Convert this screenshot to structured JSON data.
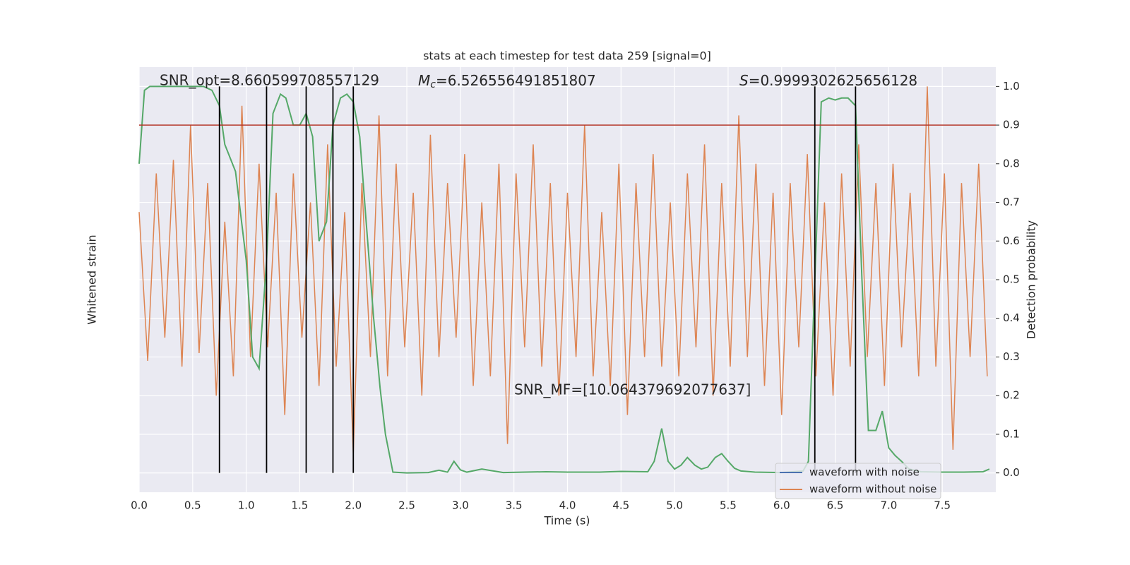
{
  "chart_data": {
    "type": "line",
    "title": "stats at each timestep for test data 259 [signal=0]",
    "x_label": "Time (s)",
    "y_label": "Whitened strain",
    "y2_label": "Detection probability",
    "xlim": [
      0,
      8
    ],
    "xticks": [
      {
        "value": 0,
        "label": "0.0"
      },
      0.5,
      {
        "value": 1,
        "label": "1.0"
      },
      1.5,
      {
        "value": 2,
        "label": "2.0"
      },
      2.5,
      {
        "value": 3,
        "label": "3.0"
      },
      3.5,
      {
        "value": 4,
        "label": "4.0"
      },
      4.5,
      {
        "value": 5,
        "label": "5.0"
      },
      5.5,
      {
        "value": 6,
        "label": "6.0"
      },
      6.5,
      {
        "value": 7,
        "label": "7.0"
      },
      7.5
    ],
    "ylim": [
      -1.1,
      1.1
    ],
    "y2lim": [
      -0.05,
      1.05
    ],
    "y2ticks": [
      {
        "value": 0,
        "label": "0.0"
      },
      0.1,
      0.2,
      0.3,
      0.4,
      0.5,
      0.6,
      0.7,
      0.8,
      0.9,
      {
        "value": 1,
        "label": "1.0"
      }
    ],
    "grid": true,
    "legend": "lower right",
    "series": [
      {
        "name": "waveform with noise",
        "color": "#4c72b0"
      },
      {
        "name": "waveform without noise",
        "color": "#dd8452",
        "x": [
          0,
          0.08,
          0.16,
          0.24,
          0.32,
          0.4,
          0.48,
          0.56,
          0.64,
          0.72,
          0.8,
          0.88,
          0.96,
          1.04,
          1.12,
          1.2,
          1.28,
          1.36,
          1.44,
          1.52,
          1.6,
          1.68,
          1.76,
          1.84,
          1.92,
          2,
          2.08,
          2.16,
          2.24,
          2.32,
          2.4,
          2.48,
          2.56,
          2.64,
          2.72,
          2.8,
          2.88,
          2.96,
          3.04,
          3.12,
          3.2,
          3.28,
          3.36,
          3.44,
          3.52,
          3.6,
          3.68,
          3.76,
          3.84,
          3.92,
          4,
          4.08,
          4.16,
          4.24,
          4.32,
          4.4,
          4.48,
          4.56,
          4.64,
          4.72,
          4.8,
          4.88,
          4.96,
          5.04,
          5.12,
          5.2,
          5.28,
          5.36,
          5.44,
          5.52,
          5.6,
          5.68,
          5.76,
          5.84,
          5.92,
          6,
          6.08,
          6.16,
          6.24,
          6.32,
          6.4,
          6.48,
          6.56,
          6.64,
          6.72,
          6.8,
          6.88,
          6.96,
          7.04,
          7.12,
          7.2,
          7.28,
          7.36,
          7.44,
          7.52,
          7.6,
          7.68,
          7.76,
          7.84,
          7.92
        ],
        "values": [
          0.35,
          -0.42,
          0.55,
          -0.3,
          0.62,
          -0.45,
          0.8,
          -0.38,
          0.5,
          -0.6,
          0.3,
          -0.5,
          0.9,
          -0.4,
          0.6,
          -0.35,
          0.45,
          -0.7,
          0.55,
          -0.3,
          0.4,
          -0.55,
          0.7,
          -0.45,
          0.35,
          -0.9,
          0.5,
          -0.4,
          0.85,
          -0.5,
          0.6,
          -0.35,
          0.45,
          -0.6,
          0.75,
          -0.4,
          0.5,
          -0.3,
          0.65,
          -0.55,
          0.4,
          -0.5,
          0.6,
          -0.85,
          0.55,
          -0.35,
          0.7,
          -0.45,
          0.5,
          -0.6,
          0.45,
          -0.4,
          0.8,
          -0.5,
          0.35,
          -0.55,
          0.6,
          -0.7,
          0.5,
          -0.4,
          0.65,
          -0.45,
          0.4,
          -0.5,
          0.55,
          -0.35,
          0.7,
          -0.6,
          0.5,
          -0.45,
          0.85,
          -0.4,
          0.6,
          -0.55,
          0.45,
          -0.7,
          0.5,
          -0.35,
          0.65,
          -0.5,
          0.4,
          -0.6,
          0.55,
          -0.45,
          0.7,
          -0.4,
          0.5,
          -0.55,
          0.6,
          -0.35,
          0.45,
          -0.5,
          1.0,
          -0.45,
          0.55,
          -0.88,
          0.5,
          -0.4,
          0.6,
          -0.5
        ]
      },
      {
        "color": "#55a868",
        "axis": "y2",
        "x": [
          0,
          0.05,
          0.1,
          0.2,
          0.4,
          0.6,
          0.68,
          0.75,
          0.8,
          0.9,
          1.0,
          1.06,
          1.12,
          1.19,
          1.25,
          1.32,
          1.37,
          1.44,
          1.5,
          1.56,
          1.62,
          1.68,
          1.75,
          1.81,
          1.88,
          1.94,
          2.0,
          2.06,
          2.12,
          2.19,
          2.25,
          2.3,
          2.37,
          2.5,
          2.7,
          2.8,
          2.88,
          2.94,
          3.0,
          3.06,
          3.2,
          3.4,
          3.6,
          3.8,
          4.0,
          4.3,
          4.5,
          4.75,
          4.81,
          4.88,
          4.94,
          5.0,
          5.06,
          5.12,
          5.19,
          5.25,
          5.31,
          5.38,
          5.44,
          5.5,
          5.56,
          5.62,
          5.75,
          6.0,
          6.2,
          6.25,
          6.31,
          6.37,
          6.44,
          6.5,
          6.56,
          6.62,
          6.69,
          6.75,
          6.81,
          6.88,
          6.94,
          7.0,
          7.06,
          7.12,
          7.19,
          7.3,
          7.5,
          7.7,
          7.88,
          7.94
        ],
        "values": [
          0.8,
          0.99,
          1.0,
          1.0,
          1.0,
          1.0,
          0.99,
          0.95,
          0.85,
          0.78,
          0.55,
          0.3,
          0.27,
          0.55,
          0.93,
          0.98,
          0.97,
          0.9,
          0.9,
          0.93,
          0.87,
          0.6,
          0.65,
          0.9,
          0.97,
          0.98,
          0.96,
          0.87,
          0.65,
          0.4,
          0.22,
          0.1,
          0.002,
          0,
          0.001,
          0.007,
          0.002,
          0.03,
          0.008,
          0.002,
          0.01,
          0.001,
          0.002,
          0.003,
          0.002,
          0.002,
          0.004,
          0.003,
          0.03,
          0.115,
          0.03,
          0.01,
          0.02,
          0.04,
          0.02,
          0.01,
          0.015,
          0.04,
          0.05,
          0.03,
          0.012,
          0.005,
          0.002,
          0.001,
          0.005,
          0.03,
          0.5,
          0.96,
          0.97,
          0.965,
          0.97,
          0.97,
          0.95,
          0.5,
          0.11,
          0.11,
          0.16,
          0.065,
          0.045,
          0.03,
          0.01,
          0.003,
          0.002,
          0.002,
          0.003,
          0.01
        ]
      }
    ],
    "hlines": [
      {
        "y": 0.9,
        "axis": "y2",
        "color": "#b5392c"
      }
    ],
    "vlines": [
      0.75,
      1.19,
      1.56,
      1.81,
      2.0,
      6.31,
      6.69
    ],
    "annotations": [
      {
        "text": "SNR_opt=8.660599708557129"
      },
      {
        "parts": [
          "M",
          "c",
          "=6.526556491851807"
        ]
      },
      {
        "parts": [
          "S",
          "=0.9999302625656128"
        ]
      },
      {
        "text": "SNR_MF=[10.064379692077637]"
      }
    ]
  }
}
